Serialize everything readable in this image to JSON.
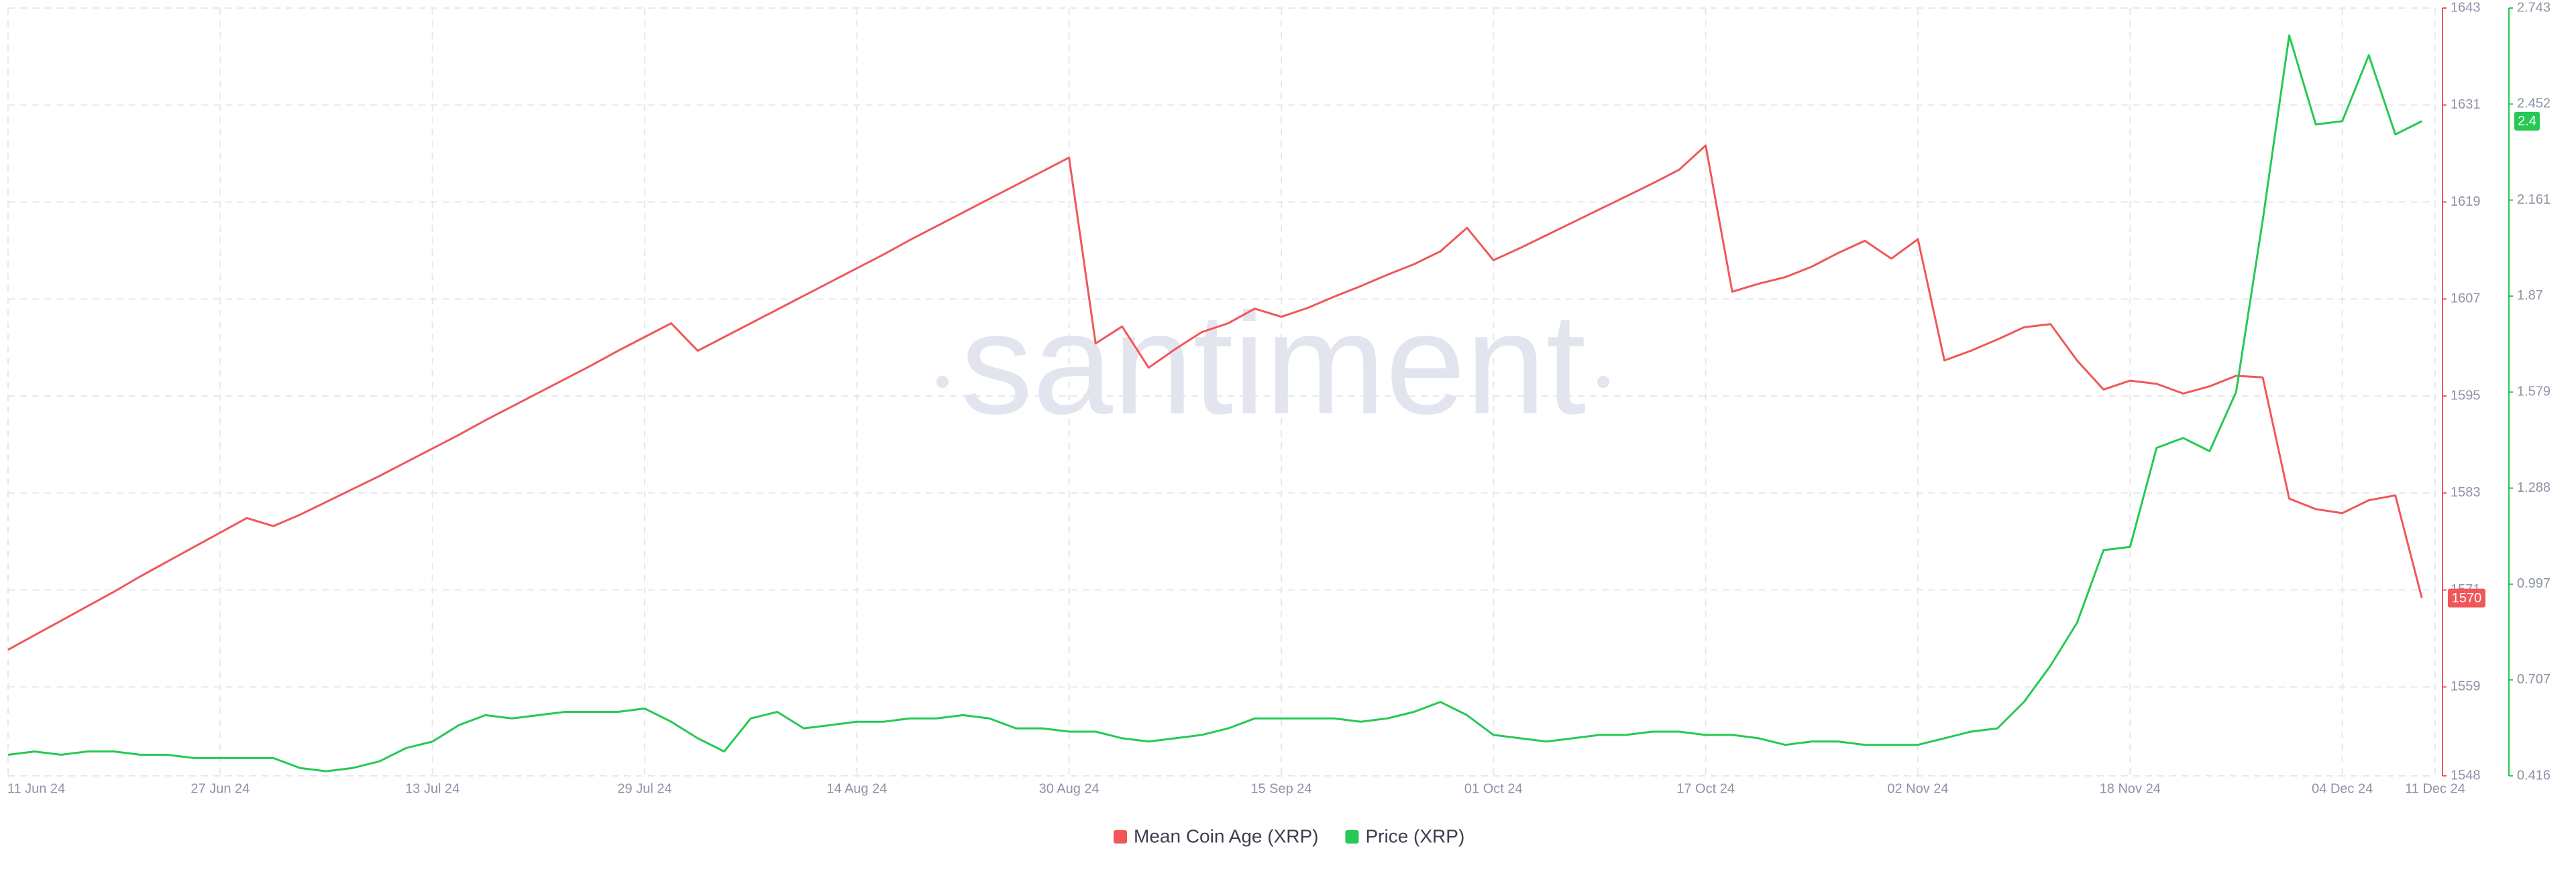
{
  "chart_data": {
    "type": "line",
    "watermark": "santiment",
    "x": [
      "2024-06-11",
      "2024-06-13",
      "2024-06-15",
      "2024-06-17",
      "2024-06-19",
      "2024-06-21",
      "2024-06-23",
      "2024-06-25",
      "2024-06-27",
      "2024-06-29",
      "2024-07-01",
      "2024-07-03",
      "2024-07-05",
      "2024-07-07",
      "2024-07-09",
      "2024-07-11",
      "2024-07-13",
      "2024-07-15",
      "2024-07-17",
      "2024-07-19",
      "2024-07-21",
      "2024-07-23",
      "2024-07-25",
      "2024-07-27",
      "2024-07-29",
      "2024-07-31",
      "2024-08-02",
      "2024-08-04",
      "2024-08-06",
      "2024-08-08",
      "2024-08-10",
      "2024-08-12",
      "2024-08-14",
      "2024-08-16",
      "2024-08-18",
      "2024-08-20",
      "2024-08-22",
      "2024-08-24",
      "2024-08-26",
      "2024-08-28",
      "2024-08-30",
      "2024-09-01",
      "2024-09-03",
      "2024-09-05",
      "2024-09-07",
      "2024-09-09",
      "2024-09-11",
      "2024-09-13",
      "2024-09-15",
      "2024-09-17",
      "2024-09-19",
      "2024-09-21",
      "2024-09-23",
      "2024-09-25",
      "2024-09-27",
      "2024-09-29",
      "2024-10-01",
      "2024-10-03",
      "2024-10-05",
      "2024-10-07",
      "2024-10-09",
      "2024-10-11",
      "2024-10-13",
      "2024-10-15",
      "2024-10-17",
      "2024-10-19",
      "2024-10-21",
      "2024-10-23",
      "2024-10-25",
      "2024-10-27",
      "2024-10-29",
      "2024-10-31",
      "2024-11-02",
      "2024-11-04",
      "2024-11-06",
      "2024-11-08",
      "2024-11-10",
      "2024-11-12",
      "2024-11-14",
      "2024-11-16",
      "2024-11-18",
      "2024-11-20",
      "2024-11-22",
      "2024-11-24",
      "2024-11-26",
      "2024-11-28",
      "2024-11-30",
      "2024-12-02",
      "2024-12-04",
      "2024-12-06",
      "2024-12-08",
      "2024-12-10"
    ],
    "series": [
      {
        "name": "Mean Coin Age (XRP)",
        "color": "#f0575a",
        "axis": "y",
        "last_value": 1570,
        "values": [
          1563.6,
          1565.4,
          1567.2,
          1569.0,
          1570.8,
          1572.7,
          1574.5,
          1576.3,
          1578.1,
          1579.9,
          1578.9,
          1580.3,
          1581.9,
          1583.5,
          1585.1,
          1586.8,
          1588.5,
          1590.2,
          1592.0,
          1593.7,
          1595.4,
          1597.1,
          1598.8,
          1600.6,
          1602.3,
          1604.0,
          1600.6,
          1602.3,
          1604.0,
          1605.7,
          1607.4,
          1609.1,
          1610.8,
          1612.5,
          1614.3,
          1616.0,
          1617.7,
          1619.4,
          1621.1,
          1622.8,
          1624.5,
          1601.5,
          1603.6,
          1598.5,
          1600.8,
          1602.9,
          1604.0,
          1605.8,
          1604.8,
          1605.9,
          1607.3,
          1608.6,
          1610.0,
          1611.3,
          1612.9,
          1615.8,
          1611.8,
          1613.3,
          1614.9,
          1616.5,
          1618.1,
          1619.7,
          1621.3,
          1623.0,
          1626.0,
          1607.9,
          1608.9,
          1609.7,
          1611.0,
          1612.7,
          1614.2,
          1612.0,
          1614.4,
          1599.4,
          1600.6,
          1602.0,
          1603.5,
          1603.9,
          1599.4,
          1595.8,
          1596.9,
          1596.5,
          1595.3,
          1596.2,
          1597.5,
          1597.3,
          1582.3,
          1581.0,
          1580.5,
          1582.1,
          1582.7,
          1570.0
        ]
      },
      {
        "name": "Price (XRP)",
        "color": "#26c953",
        "axis": "y2",
        "last_value": 2.4,
        "values": [
          0.48,
          0.49,
          0.48,
          0.49,
          0.49,
          0.48,
          0.48,
          0.47,
          0.47,
          0.47,
          0.47,
          0.44,
          0.43,
          0.44,
          0.46,
          0.5,
          0.52,
          0.57,
          0.6,
          0.59,
          0.6,
          0.61,
          0.61,
          0.61,
          0.62,
          0.58,
          0.53,
          0.49,
          0.59,
          0.61,
          0.56,
          0.57,
          0.58,
          0.58,
          0.59,
          0.59,
          0.6,
          0.59,
          0.56,
          0.56,
          0.55,
          0.55,
          0.53,
          0.52,
          0.53,
          0.54,
          0.56,
          0.59,
          0.59,
          0.59,
          0.59,
          0.58,
          0.59,
          0.61,
          0.64,
          0.6,
          0.54,
          0.53,
          0.52,
          0.53,
          0.54,
          0.54,
          0.55,
          0.55,
          0.54,
          0.54,
          0.53,
          0.51,
          0.52,
          0.52,
          0.51,
          0.51,
          0.51,
          0.53,
          0.55,
          0.56,
          0.64,
          0.75,
          0.88,
          1.1,
          1.11,
          1.41,
          1.44,
          1.4,
          1.58,
          2.1,
          2.66,
          2.39,
          2.4,
          2.6,
          2.36,
          2.4
        ]
      }
    ],
    "xlim": [
      "2024-06-11",
      "2024-12-11"
    ],
    "xticks": [
      {
        "value": "2024-06-11",
        "label": "11 Jun 24"
      },
      {
        "value": "2024-06-27",
        "label": "27 Jun 24"
      },
      {
        "value": "2024-07-13",
        "label": "13 Jul 24"
      },
      {
        "value": "2024-07-29",
        "label": "29 Jul 24"
      },
      {
        "value": "2024-08-14",
        "label": "14 Aug 24"
      },
      {
        "value": "2024-08-30",
        "label": "30 Aug 24"
      },
      {
        "value": "2024-09-15",
        "label": "15 Sep 24"
      },
      {
        "value": "2024-10-01",
        "label": "01 Oct 24"
      },
      {
        "value": "2024-10-17",
        "label": "17 Oct 24"
      },
      {
        "value": "2024-11-02",
        "label": "02 Nov 24"
      },
      {
        "value": "2024-11-18",
        "label": "18 Nov 24"
      },
      {
        "value": "2024-12-04",
        "label": "04 Dec 24"
      },
      {
        "value": "2024-12-11",
        "label": "11 Dec 24"
      }
    ],
    "ylim": [
      1548,
      1643
    ],
    "yticks": [
      1548,
      1559,
      1571,
      1583,
      1595,
      1607,
      1619,
      1631,
      1643
    ],
    "y2lim": [
      0.416,
      2.743
    ],
    "y2ticks": [
      0.416,
      0.707,
      0.997,
      1.288,
      1.579,
      1.87,
      2.161,
      2.452,
      2.743
    ],
    "grid": true,
    "legend": "bottom"
  }
}
